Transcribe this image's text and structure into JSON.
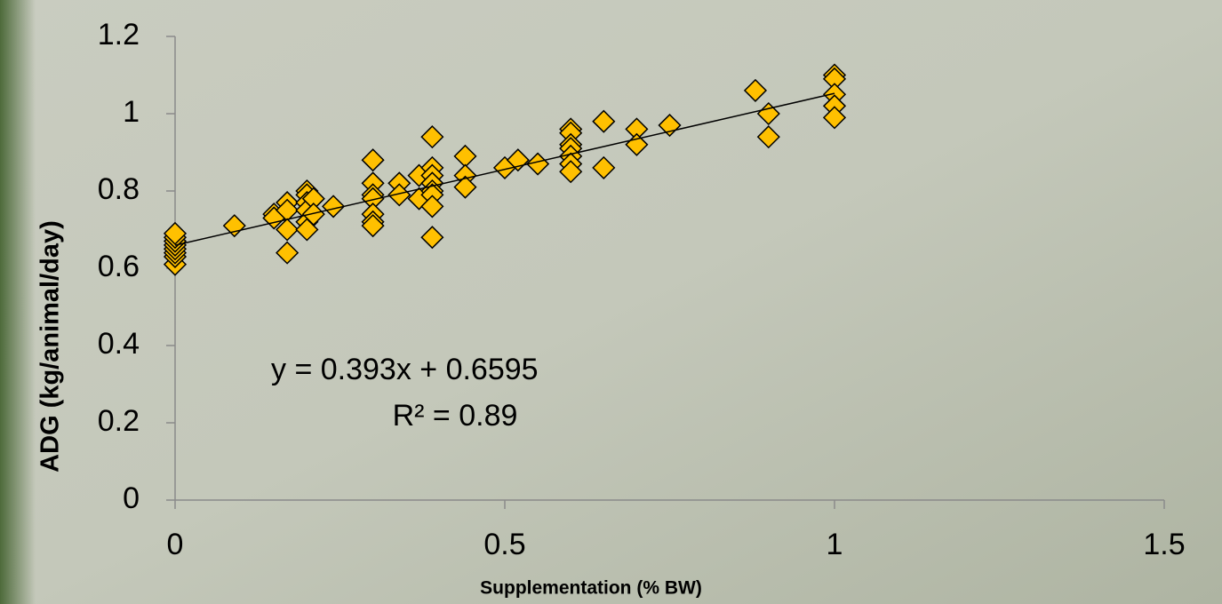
{
  "chart_data": {
    "type": "scatter",
    "xlabel": "Supplementation (% BW)",
    "ylabel": "ADG (kg/animal/day)",
    "xlim": [
      0,
      1.5
    ],
    "xticks": [
      0,
      0.5,
      1,
      1.5
    ],
    "ylim": [
      0,
      1.2
    ],
    "yticks": [
      0,
      0.2,
      0.4,
      0.6,
      0.8,
      1,
      1.2
    ],
    "series": [
      {
        "color": "#FFC000",
        "x": [
          0,
          0,
          0,
          0,
          0,
          0,
          0,
          0,
          0.09,
          0.15,
          0.15,
          0.17,
          0.17,
          0.17,
          0.17,
          0.2,
          0.2,
          0.2,
          0.2,
          0.2,
          0.2,
          0.21,
          0.21,
          0.24,
          0.3,
          0.3,
          0.3,
          0.3,
          0.3,
          0.3,
          0.3,
          0.34,
          0.34,
          0.37,
          0.37,
          0.39,
          0.39,
          0.39,
          0.39,
          0.39,
          0.39,
          0.39,
          0.39,
          0.44,
          0.44,
          0.44,
          0.5,
          0.52,
          0.55,
          0.6,
          0.6,
          0.6,
          0.6,
          0.6,
          0.6,
          0.6,
          0.65,
          0.65,
          0.7,
          0.7,
          0.75,
          0.88,
          0.9,
          0.9,
          1,
          1,
          1,
          1,
          1
        ],
        "values": [
          0.61,
          0.63,
          0.64,
          0.65,
          0.66,
          0.67,
          0.68,
          0.69,
          0.71,
          0.74,
          0.73,
          0.77,
          0.75,
          0.7,
          0.64,
          0.8,
          0.79,
          0.77,
          0.75,
          0.72,
          0.7,
          0.78,
          0.74,
          0.76,
          0.88,
          0.82,
          0.79,
          0.78,
          0.74,
          0.72,
          0.71,
          0.82,
          0.79,
          0.84,
          0.78,
          0.94,
          0.86,
          0.84,
          0.82,
          0.8,
          0.79,
          0.76,
          0.68,
          0.89,
          0.84,
          0.81,
          0.86,
          0.88,
          0.87,
          0.96,
          0.95,
          0.92,
          0.91,
          0.89,
          0.87,
          0.85,
          0.98,
          0.86,
          0.96,
          0.92,
          0.97,
          1.06,
          1.0,
          0.94,
          1.1,
          1.09,
          1.05,
          1.02,
          0.99
        ]
      }
    ],
    "trendline": {
      "x": [
        0,
        1
      ],
      "y": [
        0.6595,
        1.0525
      ]
    },
    "annotations": [
      "y = 0.393x + 0.6595",
      "R² = 0.89"
    ]
  }
}
